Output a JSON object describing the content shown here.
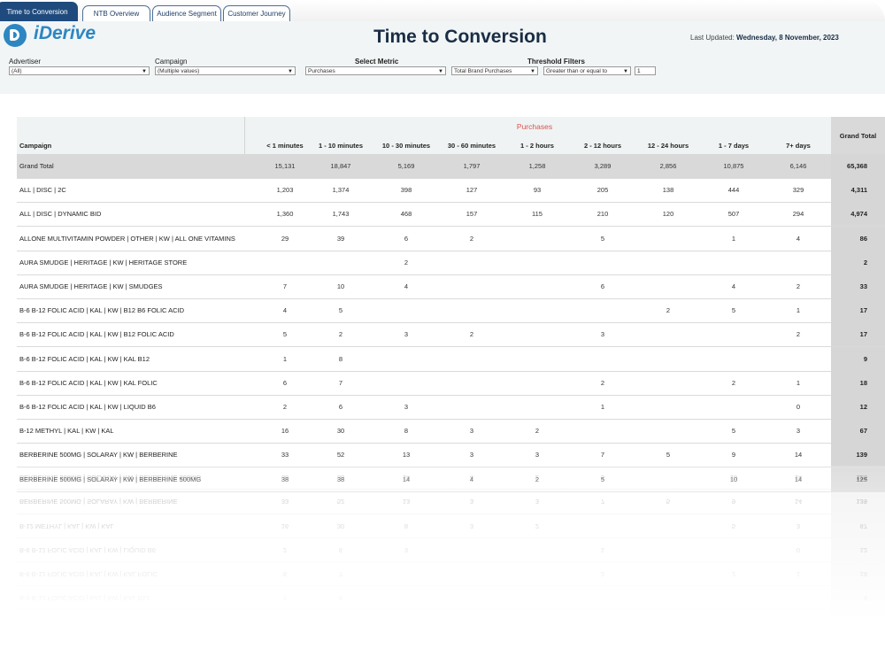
{
  "tabs": [
    {
      "label": "Time to Conversion",
      "active": true
    },
    {
      "label": "NTB Overview",
      "active": false
    },
    {
      "label": "Audience Segment",
      "active": false
    },
    {
      "label": "Customer Journey",
      "active": false
    }
  ],
  "logo": {
    "text": "iDerive",
    "icon": "iderive-logo-icon"
  },
  "page_title": "Time to Conversion",
  "last_updated": {
    "label": "Last Updated:",
    "value": "Wednesday, 8 November, 2023"
  },
  "filters": {
    "advertiser": {
      "label": "Advertiser",
      "value": "(All)"
    },
    "campaign": {
      "label": "Campaign",
      "value": "(Multiple values)"
    },
    "metric": {
      "label": "Select Metric",
      "value": "Purchases",
      "secondary_value": "Total Brand Purchases"
    },
    "threshold": {
      "label": "Threshold Filters",
      "operator": "Greater than or equal to",
      "value": "1"
    }
  },
  "table": {
    "metric_header": "Purchases",
    "campaign_header": "Campaign",
    "grand_total_header": "Grand Total",
    "columns": [
      "< 1 minutes",
      "1 - 10 minutes",
      "10 - 30 minutes",
      "30 - 60 minutes",
      "1 - 2 hours",
      "2 - 12 hours",
      "12 - 24 hours",
      "1 - 7 days",
      "7+ days"
    ],
    "total_row": {
      "name": "Grand Total",
      "values": [
        "15,131",
        "18,847",
        "5,169",
        "1,797",
        "1,258",
        "3,289",
        "2,856",
        "10,875",
        "6,146"
      ],
      "grand_total": "65,368"
    },
    "rows": [
      {
        "name": "ALL | DISC | 2C",
        "values": [
          "1,203",
          "1,374",
          "398",
          "127",
          "93",
          "205",
          "138",
          "444",
          "329"
        ],
        "grand_total": "4,311"
      },
      {
        "name": "ALL | DISC | DYNAMIC BID",
        "values": [
          "1,360",
          "1,743",
          "468",
          "157",
          "115",
          "210",
          "120",
          "507",
          "294"
        ],
        "grand_total": "4,974"
      },
      {
        "name": "ALLONE MULTIVITAMIN POWDER | OTHER | KW | ALL ONE VITAMINS",
        "values": [
          "29",
          "39",
          "6",
          "2",
          "",
          "5",
          "",
          "1",
          "4"
        ],
        "grand_total": "86"
      },
      {
        "name": "AURA SMUDGE | HERITAGE | KW |  HERITAGE STORE",
        "values": [
          "",
          "",
          "2",
          "",
          "",
          "",
          "",
          "",
          ""
        ],
        "grand_total": "2"
      },
      {
        "name": "AURA SMUDGE | HERITAGE | KW |  SMUDGES",
        "values": [
          "7",
          "10",
          "4",
          "",
          "",
          "6",
          "",
          "4",
          "2"
        ],
        "grand_total": "33"
      },
      {
        "name": "B-6 B-12 FOLIC ACID | KAL | KW |  B12 B6 FOLIC ACID",
        "values": [
          "4",
          "5",
          "",
          "",
          "",
          "",
          "2",
          "5",
          "1"
        ],
        "grand_total": "17"
      },
      {
        "name": "B-6 B-12 FOLIC ACID | KAL | KW |  B12 FOLIC ACID",
        "values": [
          "5",
          "2",
          "3",
          "2",
          "",
          "3",
          "",
          "",
          "2"
        ],
        "grand_total": "17"
      },
      {
        "name": "B-6 B-12 FOLIC ACID | KAL | KW |  KAL B12",
        "values": [
          "1",
          "8",
          "",
          "",
          "",
          "",
          "",
          "",
          ""
        ],
        "grand_total": "9"
      },
      {
        "name": "B-6 B-12 FOLIC ACID | KAL | KW |  KAL FOLIC",
        "values": [
          "6",
          "7",
          "",
          "",
          "",
          "2",
          "",
          "2",
          "1"
        ],
        "grand_total": "18"
      },
      {
        "name": "B-6 B-12 FOLIC ACID | KAL | KW |  LIQUID B6",
        "values": [
          "2",
          "6",
          "3",
          "",
          "",
          "1",
          "",
          "",
          "0"
        ],
        "grand_total": "12"
      },
      {
        "name": "B-12 METHYL | KAL | KW |  KAL",
        "values": [
          "16",
          "30",
          "8",
          "3",
          "2",
          "",
          "",
          "5",
          "3"
        ],
        "grand_total": "67"
      },
      {
        "name": "BERBERINE 500MG | SOLARAY | KW | BERBERINE",
        "values": [
          "33",
          "52",
          "13",
          "3",
          "3",
          "7",
          "5",
          "9",
          "14"
        ],
        "grand_total": "139"
      },
      {
        "name": "BERBERINE 500MG | SOLARAY | KW | BERBERINE 500MG",
        "values": [
          "38",
          "38",
          "14",
          "4",
          "2",
          "5",
          "",
          "10",
          "14"
        ],
        "grand_total": "125"
      }
    ]
  }
}
